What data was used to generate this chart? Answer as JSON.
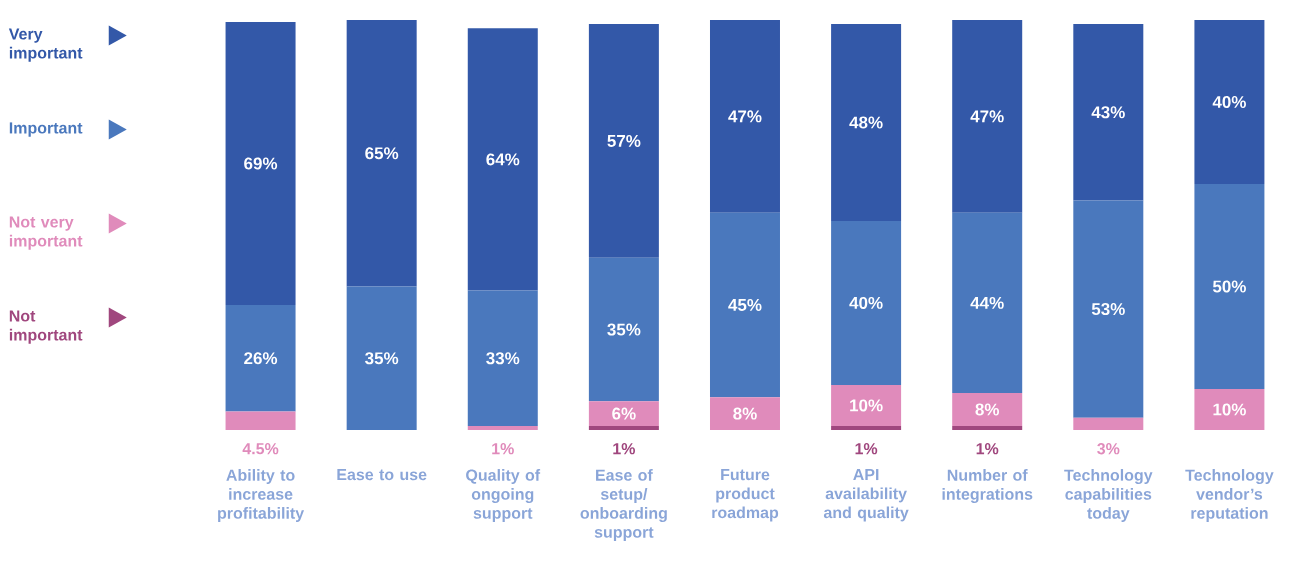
{
  "chart_data": {
    "type": "bar",
    "stacked": true,
    "legend": "left",
    "data_labels": true,
    "categories": [
      "Ability to increase profitability",
      "Ease to use",
      "Quality of ongoing support",
      "Ease of setup/ onboarding support",
      "Future product roadmap",
      "API availability and quality",
      "Number of integrations",
      "Technology capabilities today",
      "Technology vendor’s reputation"
    ],
    "series": [
      {
        "name": "Not important",
        "color": "#a0477e",
        "values": [
          null,
          null,
          null,
          1,
          null,
          1,
          1,
          null,
          null
        ],
        "value_labels": [
          null,
          null,
          null,
          "1%",
          null,
          "1%",
          "1%",
          null,
          null
        ]
      },
      {
        "name": "Not very important",
        "color": "#e08bbb",
        "values": [
          4.5,
          null,
          1,
          6,
          8,
          10,
          8,
          3,
          10
        ],
        "value_labels": [
          "4.5%",
          null,
          "1%",
          "6%",
          "8%",
          "10%",
          "8%",
          "3%",
          "10%"
        ]
      },
      {
        "name": "Important",
        "color": "#4a78bd",
        "values": [
          26,
          35,
          33,
          35,
          45,
          40,
          44,
          53,
          50
        ],
        "value_labels": [
          "26%",
          "35%",
          "33%",
          "35%",
          "45%",
          "40%",
          "44%",
          "53%",
          "50%"
        ]
      },
      {
        "name": "Very important",
        "color": "#3358a8",
        "values": [
          69,
          65,
          64,
          57,
          47,
          48,
          47,
          43,
          40
        ],
        "value_labels": [
          "69%",
          "65%",
          "64%",
          "57%",
          "47%",
          "48%",
          "47%",
          "43%",
          "40%"
        ]
      }
    ]
  }
}
